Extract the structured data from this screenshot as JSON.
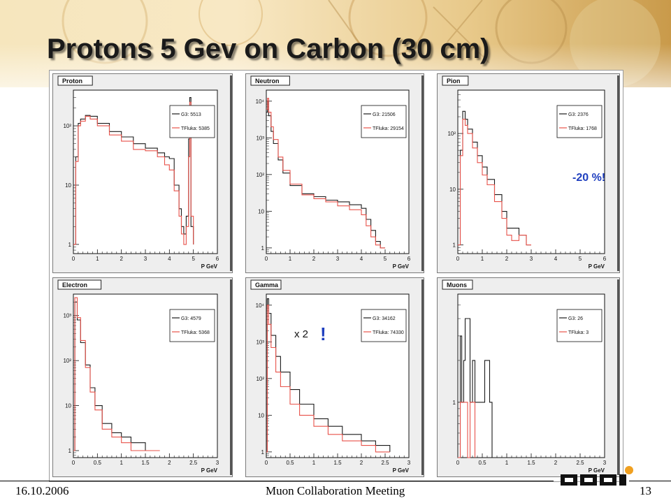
{
  "slide": {
    "title": "Protons 5 Gev on Carbon (30 cm)",
    "date": "16.10.2006",
    "footer_center": "Muon Collaboration Meeting",
    "page_number": "13"
  },
  "colors": {
    "geant3": "#1a1a1a",
    "tfluka": "#e8524a",
    "annotation_blue": "#1f3fbf"
  },
  "chart_data": [
    {
      "type": "line",
      "title": "Proton",
      "xlabel": "P GeV",
      "xlim": [
        0,
        6
      ],
      "ylim": [
        0.7,
        400
      ],
      "log_y": true,
      "xticks": [
        "0",
        "1",
        "2",
        "3",
        "4",
        "5",
        "6"
      ],
      "yticks": [
        {
          "v": 1,
          "label": "1"
        },
        {
          "v": 10,
          "label": "10"
        },
        {
          "v": 100,
          "label": "10²"
        }
      ],
      "legend": "top-right",
      "series": [
        {
          "name": "G3: 5513",
          "x": [
            0,
            0.1,
            0.2,
            0.3,
            0.5,
            0.7,
            1,
            1.5,
            2,
            2.5,
            3,
            3.5,
            3.8,
            4,
            4.2,
            4.4,
            4.5,
            4.6,
            4.7,
            4.8,
            4.85,
            4.9,
            5
          ],
          "y": [
            1,
            30,
            110,
            130,
            150,
            145,
            110,
            80,
            65,
            50,
            42,
            35,
            30,
            28,
            10,
            4,
            2,
            1.5,
            3,
            60,
            300,
            2,
            1
          ]
        },
        {
          "name": "TFluka: 5385",
          "x": [
            0,
            0.1,
            0.2,
            0.3,
            0.5,
            0.7,
            1,
            1.5,
            2,
            2.5,
            3,
            3.5,
            3.8,
            4,
            4.2,
            4.4,
            4.5,
            4.6,
            4.7,
            4.8,
            4.85,
            4.9,
            5
          ],
          "y": [
            1,
            25,
            100,
            120,
            145,
            130,
            100,
            70,
            55,
            40,
            38,
            30,
            22,
            18,
            8,
            3,
            1.5,
            1,
            2,
            30,
            250,
            3,
            1
          ]
        }
      ]
    },
    {
      "type": "line",
      "title": "Neutron",
      "xlabel": "P GeV",
      "xlim": [
        0,
        6
      ],
      "ylim": [
        0.7,
        20000
      ],
      "log_y": true,
      "xticks": [
        "0",
        "1",
        "2",
        "3",
        "4",
        "5",
        "6"
      ],
      "yticks": [
        {
          "v": 1,
          "label": "1"
        },
        {
          "v": 10,
          "label": "10"
        },
        {
          "v": 100,
          "label": "10²"
        },
        {
          "v": 1000,
          "label": "10³"
        },
        {
          "v": 10000,
          "label": "10⁴"
        }
      ],
      "legend": "top-right",
      "series": [
        {
          "name": "G3: 21506",
          "x": [
            0,
            0.05,
            0.1,
            0.2,
            0.3,
            0.5,
            0.7,
            1,
            1.5,
            2,
            2.5,
            3,
            3.5,
            4,
            4.2,
            4.4,
            4.6,
            4.8,
            5
          ],
          "y": [
            5000,
            10000,
            4000,
            1500,
            700,
            250,
            110,
            50,
            30,
            25,
            20,
            18,
            15,
            12,
            6,
            3,
            1.5,
            1,
            1
          ]
        },
        {
          "name": "TFluka: 29154",
          "x": [
            0,
            0.05,
            0.1,
            0.2,
            0.3,
            0.5,
            0.7,
            1,
            1.5,
            2,
            2.5,
            3,
            3.5,
            4,
            4.2,
            4.4,
            4.6,
            4.8,
            5
          ],
          "y": [
            6000,
            12000,
            5000,
            2000,
            900,
            300,
            130,
            55,
            28,
            22,
            18,
            14,
            11,
            8,
            4,
            2,
            1.2,
            1,
            1
          ]
        }
      ]
    },
    {
      "type": "line",
      "title": "Pion",
      "xlabel": "P GeV",
      "xlim": [
        0,
        6
      ],
      "ylim": [
        0.7,
        600
      ],
      "log_y": true,
      "xticks": [
        "0",
        "1",
        "2",
        "3",
        "4",
        "5",
        "6"
      ],
      "yticks": [
        {
          "v": 1,
          "label": "1"
        },
        {
          "v": 10,
          "label": "10"
        },
        {
          "v": 100,
          "label": "10²"
        }
      ],
      "legend": "top-right",
      "annotation": "-20 %!",
      "series": [
        {
          "name": "G3: 2376",
          "x": [
            0,
            0.1,
            0.2,
            0.3,
            0.4,
            0.6,
            0.8,
            1,
            1.2,
            1.5,
            1.8,
            2,
            2.2,
            2.5,
            2.8,
            3
          ],
          "y": [
            1,
            50,
            250,
            180,
            120,
            70,
            40,
            25,
            15,
            8,
            4,
            2,
            2,
            1.5,
            1,
            1
          ]
        },
        {
          "name": "TFluka: 1768",
          "x": [
            0,
            0.1,
            0.2,
            0.3,
            0.4,
            0.6,
            0.8,
            1,
            1.2,
            1.5,
            1.8,
            2,
            2.2,
            2.5,
            2.8,
            3
          ],
          "y": [
            1,
            40,
            180,
            140,
            100,
            55,
            30,
            18,
            12,
            6,
            3,
            1.5,
            1.2,
            1.5,
            1,
            1
          ]
        }
      ]
    },
    {
      "type": "line",
      "title": "Electron",
      "xlabel": "P GeV",
      "xlim": [
        0,
        3
      ],
      "ylim": [
        0.7,
        3000
      ],
      "log_y": true,
      "xticks": [
        "0",
        "0.5",
        "1",
        "1.5",
        "2",
        "2.5",
        "3"
      ],
      "yticks": [
        {
          "v": 1,
          "label": "1"
        },
        {
          "v": 10,
          "label": "10"
        },
        {
          "v": 100,
          "label": "10²"
        },
        {
          "v": 1000,
          "label": "10³"
        }
      ],
      "legend": "top-right",
      "series": [
        {
          "name": "G3: 4579",
          "x": [
            0,
            0.03,
            0.08,
            0.15,
            0.25,
            0.35,
            0.45,
            0.6,
            0.8,
            1,
            1.2,
            1.5,
            1.8
          ],
          "y": [
            1,
            2000,
            800,
            250,
            80,
            25,
            10,
            4,
            2.5,
            2,
            1.5,
            1,
            1
          ]
        },
        {
          "name": "TFluka: 5368",
          "x": [
            0,
            0.03,
            0.08,
            0.15,
            0.25,
            0.35,
            0.45,
            0.6,
            0.8,
            1,
            1.2,
            1.5,
            1.8
          ],
          "y": [
            1,
            2500,
            900,
            280,
            70,
            20,
            8,
            3,
            2,
            1.5,
            1,
            1,
            1
          ]
        }
      ]
    },
    {
      "type": "line",
      "title": "Gamma",
      "xlabel": "P GeV",
      "xlim": [
        0,
        3
      ],
      "ylim": [
        0.7,
        20000
      ],
      "log_y": true,
      "xticks": [
        "0",
        "0.5",
        "1",
        "1.5",
        "2",
        "2.5",
        "3"
      ],
      "yticks": [
        {
          "v": 1,
          "label": "1"
        },
        {
          "v": 10,
          "label": "10"
        },
        {
          "v": 100,
          "label": "10²"
        },
        {
          "v": 1000,
          "label": "10³"
        },
        {
          "v": 10000,
          "label": "10⁴"
        }
      ],
      "legend": "top-right",
      "annotation": "x 2",
      "annotation_mark": "!",
      "series": [
        {
          "name": "G3: 34162",
          "x": [
            0,
            0.02,
            0.05,
            0.1,
            0.2,
            0.3,
            0.5,
            0.7,
            1,
            1.3,
            1.6,
            2,
            2.3,
            2.6
          ],
          "y": [
            1,
            15000,
            6000,
            1500,
            400,
            150,
            50,
            20,
            8,
            5,
            3,
            2,
            1.5,
            1
          ]
        },
        {
          "name": "TFluka: 74330",
          "x": [
            0,
            0.02,
            0.05,
            0.1,
            0.2,
            0.3,
            0.5,
            0.7,
            1,
            1.3,
            1.6,
            2,
            2.3,
            2.6
          ],
          "y": [
            1,
            10000,
            3000,
            700,
            150,
            60,
            20,
            10,
            5,
            3,
            2,
            1.5,
            1,
            1
          ]
        }
      ]
    },
    {
      "type": "line",
      "title": "Muons",
      "xlabel": "P GeV",
      "xlim": [
        0,
        3
      ],
      "ylim": [
        0.4,
        6
      ],
      "log_y": true,
      "xticks": [
        "0",
        "0.5",
        "1",
        "1.5",
        "2",
        "2.5",
        "3"
      ],
      "yticks": [
        {
          "v": 1,
          "label": "1"
        }
      ],
      "legend": "top-right",
      "series": [
        {
          "name": "G3: 26",
          "x": [
            0,
            0.05,
            0.08,
            0.12,
            0.15,
            0.2,
            0.25,
            0.3,
            0.35,
            0.45,
            0.5,
            0.55,
            0.65,
            0.7
          ],
          "y": [
            0.4,
            3,
            1,
            2,
            4,
            4,
            1,
            2,
            1,
            1,
            1,
            2,
            1,
            0.4
          ]
        },
        {
          "name": "TFluka: 3",
          "x": [
            0,
            0.05,
            0.1,
            0.15,
            0.2,
            0.25,
            0.3,
            0.35
          ],
          "y": [
            0.4,
            1,
            1,
            1,
            0.4,
            1,
            1,
            0.4
          ]
        }
      ]
    }
  ]
}
